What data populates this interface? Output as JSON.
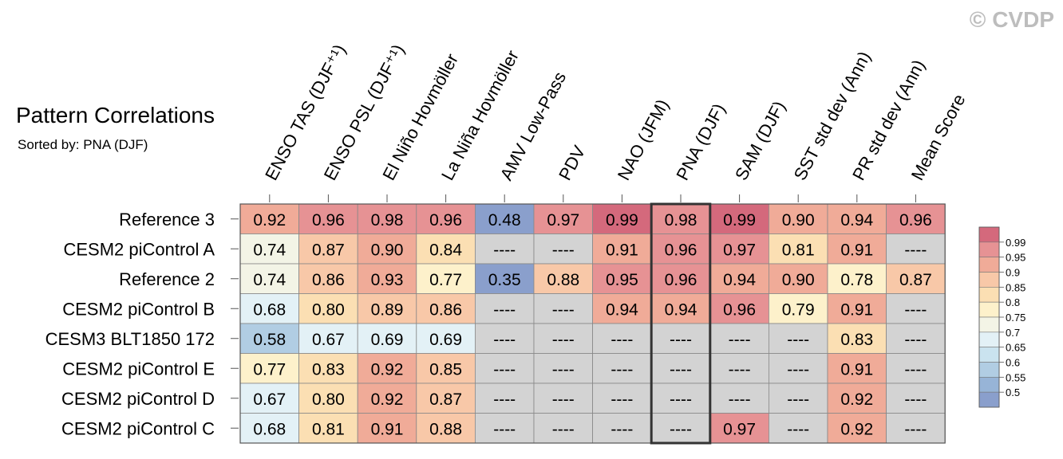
{
  "watermark": "© CVDP",
  "chart_data": {
    "type": "heatmap",
    "title": "Pattern Correlations",
    "subtitle": "Sorted by: PNA (DJF)",
    "columns": [
      "ENSO TAS (DJF⁺¹)",
      "ENSO PSL (DJF⁺¹)",
      "El Niño Hovmöller",
      "La Niña Hovmöller",
      "AMV Low-Pass",
      "PDV",
      "NAO (JFM)",
      "PNA (DJF)",
      "SAM (DJF)",
      "SST std dev (Ann)",
      "PR std dev (Ann)",
      "Mean Score"
    ],
    "rows": [
      "Reference 3",
      "CESM2 piControl A",
      "Reference 2",
      "CESM2 piControl B",
      "CESM3 BLT1850 172",
      "CESM2 piControl E",
      "CESM2 piControl D",
      "CESM2 piControl C"
    ],
    "values": [
      [
        "0.92",
        "0.96",
        "0.98",
        "0.96",
        "0.48",
        "0.97",
        "0.99",
        "0.98",
        "0.99",
        "0.90",
        "0.94",
        "0.96"
      ],
      [
        "0.74",
        "0.87",
        "0.90",
        "0.84",
        "----",
        "----",
        "0.91",
        "0.96",
        "0.97",
        "0.81",
        "0.91",
        "----"
      ],
      [
        "0.74",
        "0.86",
        "0.93",
        "0.77",
        "0.35",
        "0.88",
        "0.95",
        "0.96",
        "0.94",
        "0.90",
        "0.78",
        "0.87"
      ],
      [
        "0.68",
        "0.80",
        "0.89",
        "0.86",
        "----",
        "----",
        "0.94",
        "0.94",
        "0.96",
        "0.79",
        "0.91",
        "----"
      ],
      [
        "0.58",
        "0.67",
        "0.69",
        "0.69",
        "----",
        "----",
        "----",
        "----",
        "----",
        "----",
        "0.83",
        "----"
      ],
      [
        "0.77",
        "0.83",
        "0.92",
        "0.85",
        "----",
        "----",
        "----",
        "----",
        "----",
        "----",
        "0.91",
        "----"
      ],
      [
        "0.67",
        "0.80",
        "0.92",
        "0.87",
        "----",
        "----",
        "----",
        "----",
        "----",
        "----",
        "0.92",
        "----"
      ],
      [
        "0.68",
        "0.81",
        "0.91",
        "0.88",
        "----",
        "----",
        "----",
        "----",
        "0.97",
        "----",
        "0.92",
        "----"
      ]
    ],
    "missing_color": "#d3d3d3",
    "highlight_column": "PNA (DJF)",
    "colorbar": {
      "labels": [
        "0.99",
        "0.95",
        "0.9",
        "0.85",
        "0.8",
        "0.75",
        "0.7",
        "0.65",
        "0.6",
        "0.55",
        "0.5"
      ],
      "colors": [
        "#d4697c",
        "#e69294",
        "#f0ab98",
        "#f8c8a8",
        "#fbdfb3",
        "#fdf1cb",
        "#f3f4e6",
        "#e3f1f6",
        "#cae3ef",
        "#b1cde3",
        "#97b4d7",
        "#8a9fcc"
      ]
    },
    "legend_position": "right"
  }
}
